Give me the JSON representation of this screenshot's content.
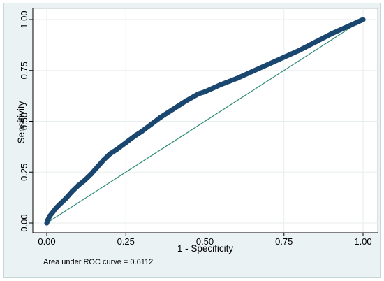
{
  "chart_data": {
    "type": "line",
    "title": "",
    "xlabel": "1 - Specificity",
    "ylabel": "Sensitivity",
    "xlim": [
      0,
      1
    ],
    "ylim": [
      0,
      1
    ],
    "x_ticks": [
      "0.00",
      "0.25",
      "0.50",
      "0.75",
      "1.00"
    ],
    "y_ticks": [
      "0.00",
      "0.25",
      "0.50",
      "0.75",
      "1.00"
    ],
    "grid": true,
    "legend": "none",
    "note": "Area under ROC curve = 0.6112",
    "colors": {
      "roc_curve": "#1a476f",
      "reference_line": "#2e8b77",
      "plot_background": "#ffffff",
      "outer_background": "#eaf2f3",
      "grid": "#e8eded"
    },
    "series": [
      {
        "kind": "roc-curve",
        "x": [
          0.0,
          0.005,
          0.01,
          0.02,
          0.03,
          0.04,
          0.05,
          0.06,
          0.08,
          0.1,
          0.12,
          0.14,
          0.16,
          0.18,
          0.2,
          0.22,
          0.25,
          0.28,
          0.3,
          0.33,
          0.36,
          0.4,
          0.44,
          0.48,
          0.5,
          0.55,
          0.6,
          0.65,
          0.7,
          0.75,
          0.8,
          0.85,
          0.9,
          0.95,
          1.0
        ],
        "y": [
          0.0,
          0.02,
          0.035,
          0.055,
          0.075,
          0.09,
          0.105,
          0.12,
          0.155,
          0.185,
          0.21,
          0.24,
          0.275,
          0.31,
          0.34,
          0.36,
          0.395,
          0.43,
          0.45,
          0.485,
          0.52,
          0.56,
          0.6,
          0.635,
          0.645,
          0.68,
          0.71,
          0.745,
          0.78,
          0.815,
          0.85,
          0.89,
          0.93,
          0.965,
          1.0
        ]
      },
      {
        "kind": "reference-line",
        "x": [
          0,
          1
        ],
        "y": [
          0,
          1
        ]
      }
    ]
  }
}
